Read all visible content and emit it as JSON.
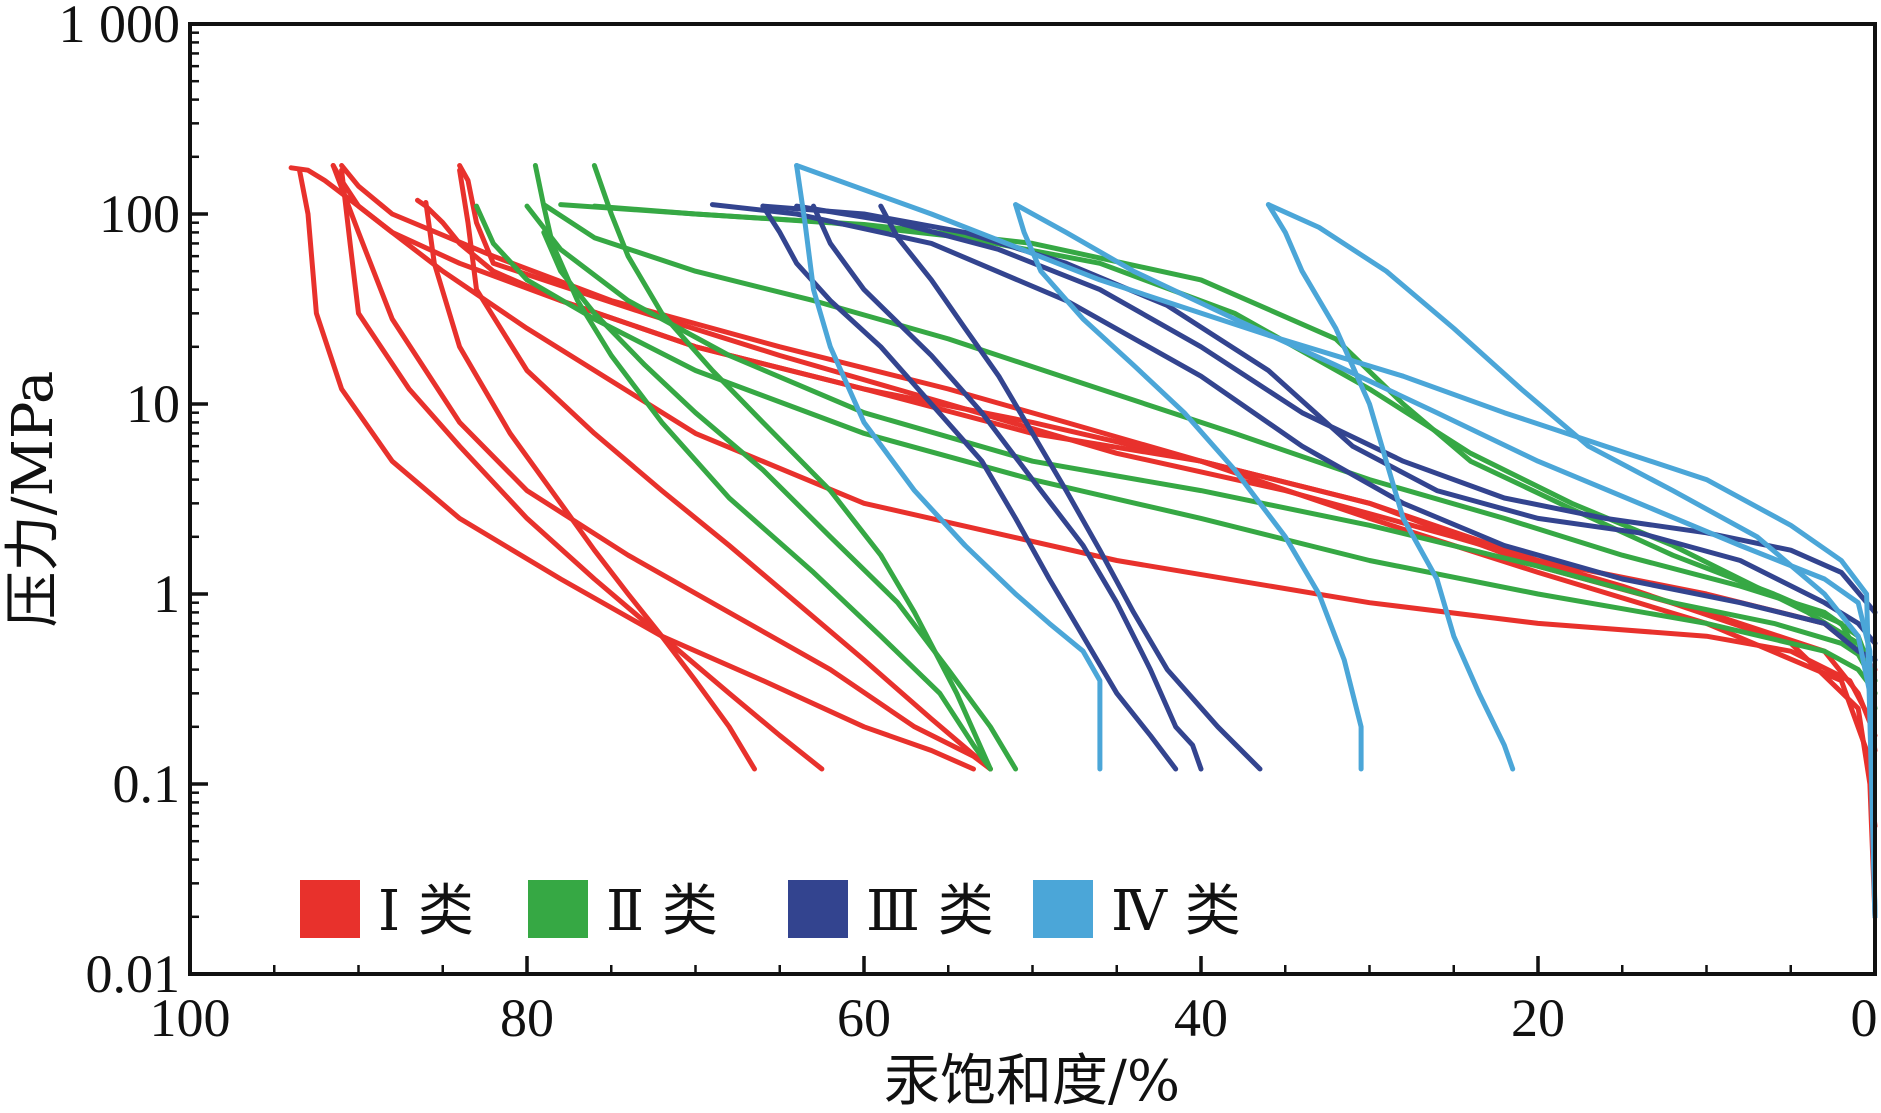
{
  "chart_data": {
    "type": "line",
    "title": "",
    "xlabel": "汞饱和度/%",
    "ylabel": "压力/MPa",
    "xlim": [
      100,
      0
    ],
    "ylim": [
      0.01,
      1000
    ],
    "yscale": "log",
    "x_ticks": [
      {
        "value": 100,
        "label": "100"
      },
      {
        "value": 80,
        "label": "80"
      },
      {
        "value": 60,
        "label": "60"
      },
      {
        "value": 40,
        "label": "40"
      },
      {
        "value": 20,
        "label": "20"
      },
      {
        "value": 0,
        "label": "0"
      }
    ],
    "y_ticks": [
      {
        "value": 1000,
        "label": "1 000"
      },
      {
        "value": 100,
        "label": "100"
      },
      {
        "value": 10,
        "label": "10"
      },
      {
        "value": 1,
        "label": "1"
      },
      {
        "value": 0.1,
        "label": "0.1"
      },
      {
        "value": 0.01,
        "label": "0.01"
      }
    ],
    "grid": false,
    "legend_position": "bottom-left",
    "legend": [
      {
        "name": "Ⅰ类",
        "label": "Ⅰ 类",
        "color": "#e8312c"
      },
      {
        "name": "Ⅱ类",
        "label": "Ⅱ 类",
        "color": "#36a844"
      },
      {
        "name": "Ⅲ类",
        "label": "Ⅲ 类",
        "color": "#33448f"
      },
      {
        "name": "Ⅳ类",
        "label": "Ⅳ 类",
        "color": "#4ba6d8"
      }
    ],
    "series": [
      {
        "group": "Ⅰ类",
        "color": "#e8312c",
        "x": [
          0,
          0.3,
          1.5,
          5,
          10,
          20,
          30,
          45,
          60,
          70,
          80,
          85,
          88,
          90,
          92,
          93,
          94
        ],
        "y": [
          0.15,
          0.22,
          0.35,
          0.5,
          0.6,
          0.7,
          0.9,
          1.5,
          3,
          7,
          25,
          50,
          80,
          110,
          150,
          170,
          175
        ]
      },
      {
        "group": "Ⅰ类",
        "color": "#e8312c",
        "x": [
          0,
          1,
          3,
          10,
          20,
          30,
          40,
          50,
          60,
          70,
          78,
          84,
          88,
          90,
          91,
          91.5
        ],
        "y": [
          0.4,
          0.5,
          0.7,
          1.0,
          1.5,
          3,
          5,
          8,
          12,
          20,
          35,
          55,
          80,
          110,
          150,
          180
        ]
      },
      {
        "group": "Ⅰ类",
        "color": "#e8312c",
        "x": [
          0,
          0.5,
          2,
          10,
          20,
          30,
          40,
          48,
          55,
          65,
          75,
          82,
          88,
          90,
          91
        ],
        "y": [
          0.06,
          0.15,
          0.35,
          0.7,
          1.3,
          2.5,
          5,
          8,
          12,
          20,
          35,
          60,
          100,
          140,
          180
        ]
      },
      {
        "group": "Ⅰ类",
        "color": "#e8312c",
        "x": [
          0,
          1,
          3,
          10,
          20,
          30,
          40,
          50,
          60,
          70,
          78,
          82,
          84,
          85,
          86,
          86.5
        ],
        "y": [
          0.18,
          0.3,
          0.5,
          0.8,
          1.4,
          3,
          5,
          7,
          12,
          20,
          35,
          50,
          70,
          90,
          110,
          118
        ]
      },
      {
        "group": "Ⅰ类",
        "color": "#e8312c",
        "x": [
          0,
          0.3,
          1,
          5,
          15,
          25,
          35,
          45,
          55,
          65,
          73,
          78,
          82,
          83,
          83.5,
          84
        ],
        "y": [
          0.02,
          0.1,
          0.25,
          0.55,
          1.1,
          2,
          3.5,
          5.5,
          10,
          18,
          30,
          42,
          55,
          90,
          150,
          180
        ]
      },
      {
        "group": "Ⅰ类",
        "color": "#e8312c",
        "x": [
          93.5,
          93,
          92.5,
          91,
          88,
          84,
          78,
          72,
          66,
          60,
          56,
          53.5
        ],
        "y": [
          170,
          100,
          30,
          12,
          5,
          2.5,
          1.2,
          0.6,
          0.35,
          0.2,
          0.15,
          0.12
        ]
      },
      {
        "group": "Ⅰ类",
        "color": "#e8312c",
        "x": [
          91.5,
          90,
          88,
          84,
          80,
          74,
          68,
          62,
          57,
          53.5,
          52.5
        ],
        "y": [
          180,
          80,
          28,
          8,
          3.5,
          1.6,
          0.8,
          0.4,
          0.2,
          0.14,
          0.12
        ]
      },
      {
        "group": "Ⅰ类",
        "color": "#e8312c",
        "x": [
          91,
          90.5,
          90,
          87,
          84,
          80,
          76,
          72,
          68,
          65,
          62.5
        ],
        "y": [
          170,
          70,
          30,
          12,
          6,
          2.5,
          1.2,
          0.6,
          0.3,
          0.18,
          0.12
        ]
      },
      {
        "group": "Ⅰ类",
        "color": "#e8312c",
        "x": [
          86,
          85.5,
          84,
          81,
          78,
          76,
          74,
          72,
          70,
          68,
          66.5
        ],
        "y": [
          115,
          55,
          20,
          7,
          3,
          1.7,
          1.0,
          0.6,
          0.35,
          0.2,
          0.12
        ]
      },
      {
        "group": "Ⅰ类",
        "color": "#e8312c",
        "x": [
          84,
          83.5,
          83,
          80,
          76,
          72,
          68,
          64,
          60,
          56,
          52.5
        ],
        "y": [
          170,
          90,
          40,
          15,
          7,
          3.5,
          1.8,
          0.9,
          0.45,
          0.22,
          0.12
        ]
      },
      {
        "group": "Ⅱ类",
        "color": "#36a844",
        "x": [
          0,
          0.5,
          1,
          3,
          10,
          20,
          30,
          40,
          50,
          60,
          70,
          76,
          80,
          82,
          83
        ],
        "y": [
          0.3,
          0.35,
          0.4,
          0.5,
          0.7,
          1.0,
          1.5,
          2.5,
          4,
          7,
          15,
          28,
          45,
          70,
          110
        ]
      },
      {
        "group": "Ⅱ类",
        "color": "#36a844",
        "x": [
          0,
          0.5,
          2,
          6,
          12,
          20,
          30,
          40,
          50,
          60,
          68,
          74,
          78,
          80
        ],
        "y": [
          0.3,
          0.45,
          0.55,
          0.7,
          0.9,
          1.4,
          2.3,
          3.5,
          5,
          9,
          18,
          35,
          65,
          110
        ]
      },
      {
        "group": "Ⅱ类",
        "color": "#36a844",
        "x": [
          0,
          1,
          3,
          8,
          15,
          22,
          30,
          38,
          46,
          55,
          63,
          70,
          76,
          79
        ],
        "y": [
          0.35,
          0.6,
          0.8,
          1.1,
          1.6,
          2.5,
          4,
          7,
          12,
          22,
          35,
          50,
          75,
          112
        ]
      },
      {
        "group": "Ⅱ类",
        "color": "#36a844",
        "x": [
          0,
          0.5,
          2,
          6,
          12,
          18,
          24,
          28,
          32,
          40,
          50,
          60,
          70,
          78
        ],
        "y": [
          0.25,
          0.4,
          0.7,
          1.0,
          1.6,
          2.8,
          5,
          10,
          22,
          45,
          70,
          88,
          100,
          112
        ]
      },
      {
        "group": "Ⅱ类",
        "color": "#36a844",
        "x": [
          0,
          1,
          4,
          8,
          12,
          18,
          24,
          30,
          38,
          46,
          54,
          62,
          70,
          76
        ],
        "y": [
          0.35,
          0.55,
          0.8,
          1.2,
          1.8,
          3,
          5.5,
          12,
          30,
          55,
          75,
          90,
          100,
          110
        ]
      },
      {
        "group": "Ⅱ类",
        "color": "#36a844",
        "x": [
          79.5,
          79,
          78.5,
          77,
          75,
          72,
          68,
          63,
          59,
          55.5,
          53.5,
          52.5
        ],
        "y": [
          180,
          110,
          70,
          35,
          18,
          8,
          3.2,
          1.3,
          0.6,
          0.3,
          0.16,
          0.12
        ]
      },
      {
        "group": "Ⅱ类",
        "color": "#36a844",
        "x": [
          76,
          75,
          74,
          72,
          69,
          66,
          62,
          59,
          57,
          54.5,
          52.5
        ],
        "y": [
          180,
          100,
          60,
          30,
          15,
          8,
          3.5,
          1.6,
          0.8,
          0.3,
          0.12
        ]
      },
      {
        "group": "Ⅱ类",
        "color": "#36a844",
        "x": [
          79,
          78,
          76,
          73,
          70,
          66,
          62,
          58,
          55,
          52.5,
          51
        ],
        "y": [
          80,
          50,
          30,
          16,
          9,
          4.5,
          2,
          0.9,
          0.4,
          0.2,
          0.12
        ]
      },
      {
        "group": "Ⅲ类",
        "color": "#33448f",
        "x": [
          0,
          1,
          3,
          8,
          15,
          22,
          28,
          34,
          40,
          48,
          56,
          64,
          69
        ],
        "y": [
          0.45,
          0.5,
          0.7,
          0.9,
          1.2,
          1.8,
          3,
          6,
          14,
          35,
          70,
          100,
          112
        ]
      },
      {
        "group": "Ⅲ类",
        "color": "#33448f",
        "x": [
          0,
          1,
          3,
          8,
          14,
          20,
          26,
          31,
          36,
          42,
          48,
          54,
          60,
          66
        ],
        "y": [
          0.55,
          0.7,
          0.9,
          1.5,
          2.1,
          2.5,
          3.5,
          6,
          15,
          33,
          55,
          80,
          100,
          110
        ]
      },
      {
        "group": "Ⅲ类",
        "color": "#33448f",
        "x": [
          0,
          2,
          5,
          10,
          16,
          22,
          28,
          34,
          40,
          46,
          52,
          58,
          64
        ],
        "y": [
          0.8,
          1.3,
          1.7,
          2.1,
          2.5,
          3.2,
          5,
          9,
          20,
          40,
          65,
          90,
          110
        ]
      },
      {
        "group": "Ⅲ类",
        "color": "#33448f",
        "x": [
          66,
          65,
          64,
          62,
          59,
          56,
          53,
          51,
          49,
          47,
          45,
          43,
          41.5
        ],
        "y": [
          110,
          80,
          55,
          35,
          20,
          10,
          5,
          2.5,
          1.2,
          0.6,
          0.3,
          0.18,
          0.12
        ]
      },
      {
        "group": "Ⅲ类",
        "color": "#33448f",
        "x": [
          63,
          62,
          60,
          56,
          53,
          50,
          47,
          45,
          43,
          41.5,
          40.5,
          40
        ],
        "y": [
          110,
          70,
          40,
          18,
          9,
          4,
          1.8,
          0.9,
          0.4,
          0.2,
          0.16,
          0.12
        ]
      },
      {
        "group": "Ⅲ类",
        "color": "#33448f",
        "x": [
          59,
          58,
          56,
          54,
          52,
          50,
          48,
          46,
          44,
          42,
          39,
          36.5
        ],
        "y": [
          110,
          75,
          45,
          25,
          14,
          7,
          3.5,
          1.7,
          0.8,
          0.4,
          0.2,
          0.12
        ]
      },
      {
        "group": "Ⅳ类",
        "color": "#4ba6d8",
        "x": [
          0,
          0.3,
          1,
          3,
          8,
          14,
          20,
          26,
          32,
          38,
          44,
          48,
          51
        ],
        "y": [
          0.02,
          0.5,
          0.9,
          1.2,
          1.8,
          3,
          5,
          9,
          16,
          28,
          50,
          80,
          112
        ]
      },
      {
        "group": "Ⅳ类",
        "color": "#4ba6d8",
        "x": [
          0,
          0.3,
          1,
          3,
          7,
          12,
          17,
          21,
          25,
          29,
          33,
          36
        ],
        "y": [
          0.02,
          0.3,
          0.6,
          1.0,
          2,
          3.5,
          6,
          12,
          25,
          50,
          85,
          112
        ]
      },
      {
        "group": "Ⅳ类",
        "color": "#4ba6d8",
        "x": [
          0,
          0.5,
          2,
          5,
          10,
          16,
          22,
          28,
          36,
          46,
          56,
          64
        ],
        "y": [
          0.02,
          1.0,
          1.5,
          2.3,
          4,
          6,
          9,
          14,
          23,
          45,
          100,
          180
        ]
      },
      {
        "group": "Ⅳ类",
        "color": "#4ba6d8",
        "x": [
          64,
          63.5,
          63,
          62,
          60,
          57,
          54,
          51,
          49,
          47,
          46,
          46,
          46
        ],
        "y": [
          180,
          90,
          40,
          20,
          8,
          3.5,
          1.8,
          1.0,
          0.7,
          0.5,
          0.35,
          0.2,
          0.12
        ]
      },
      {
        "group": "Ⅳ类",
        "color": "#4ba6d8",
        "x": [
          51,
          50.5,
          49.5,
          47,
          44,
          41,
          38,
          35,
          33,
          31.5,
          30.5,
          30.5
        ],
        "y": [
          112,
          80,
          50,
          28,
          16,
          9,
          4.5,
          2,
          1,
          0.45,
          0.2,
          0.12
        ]
      },
      {
        "group": "Ⅳ类",
        "color": "#4ba6d8",
        "x": [
          36,
          35,
          34,
          32,
          30,
          29,
          28,
          26,
          25,
          23.5,
          22,
          21.5
        ],
        "y": [
          112,
          80,
          50,
          25,
          10,
          5,
          2.5,
          1.2,
          0.6,
          0.3,
          0.16,
          0.12
        ]
      }
    ]
  }
}
